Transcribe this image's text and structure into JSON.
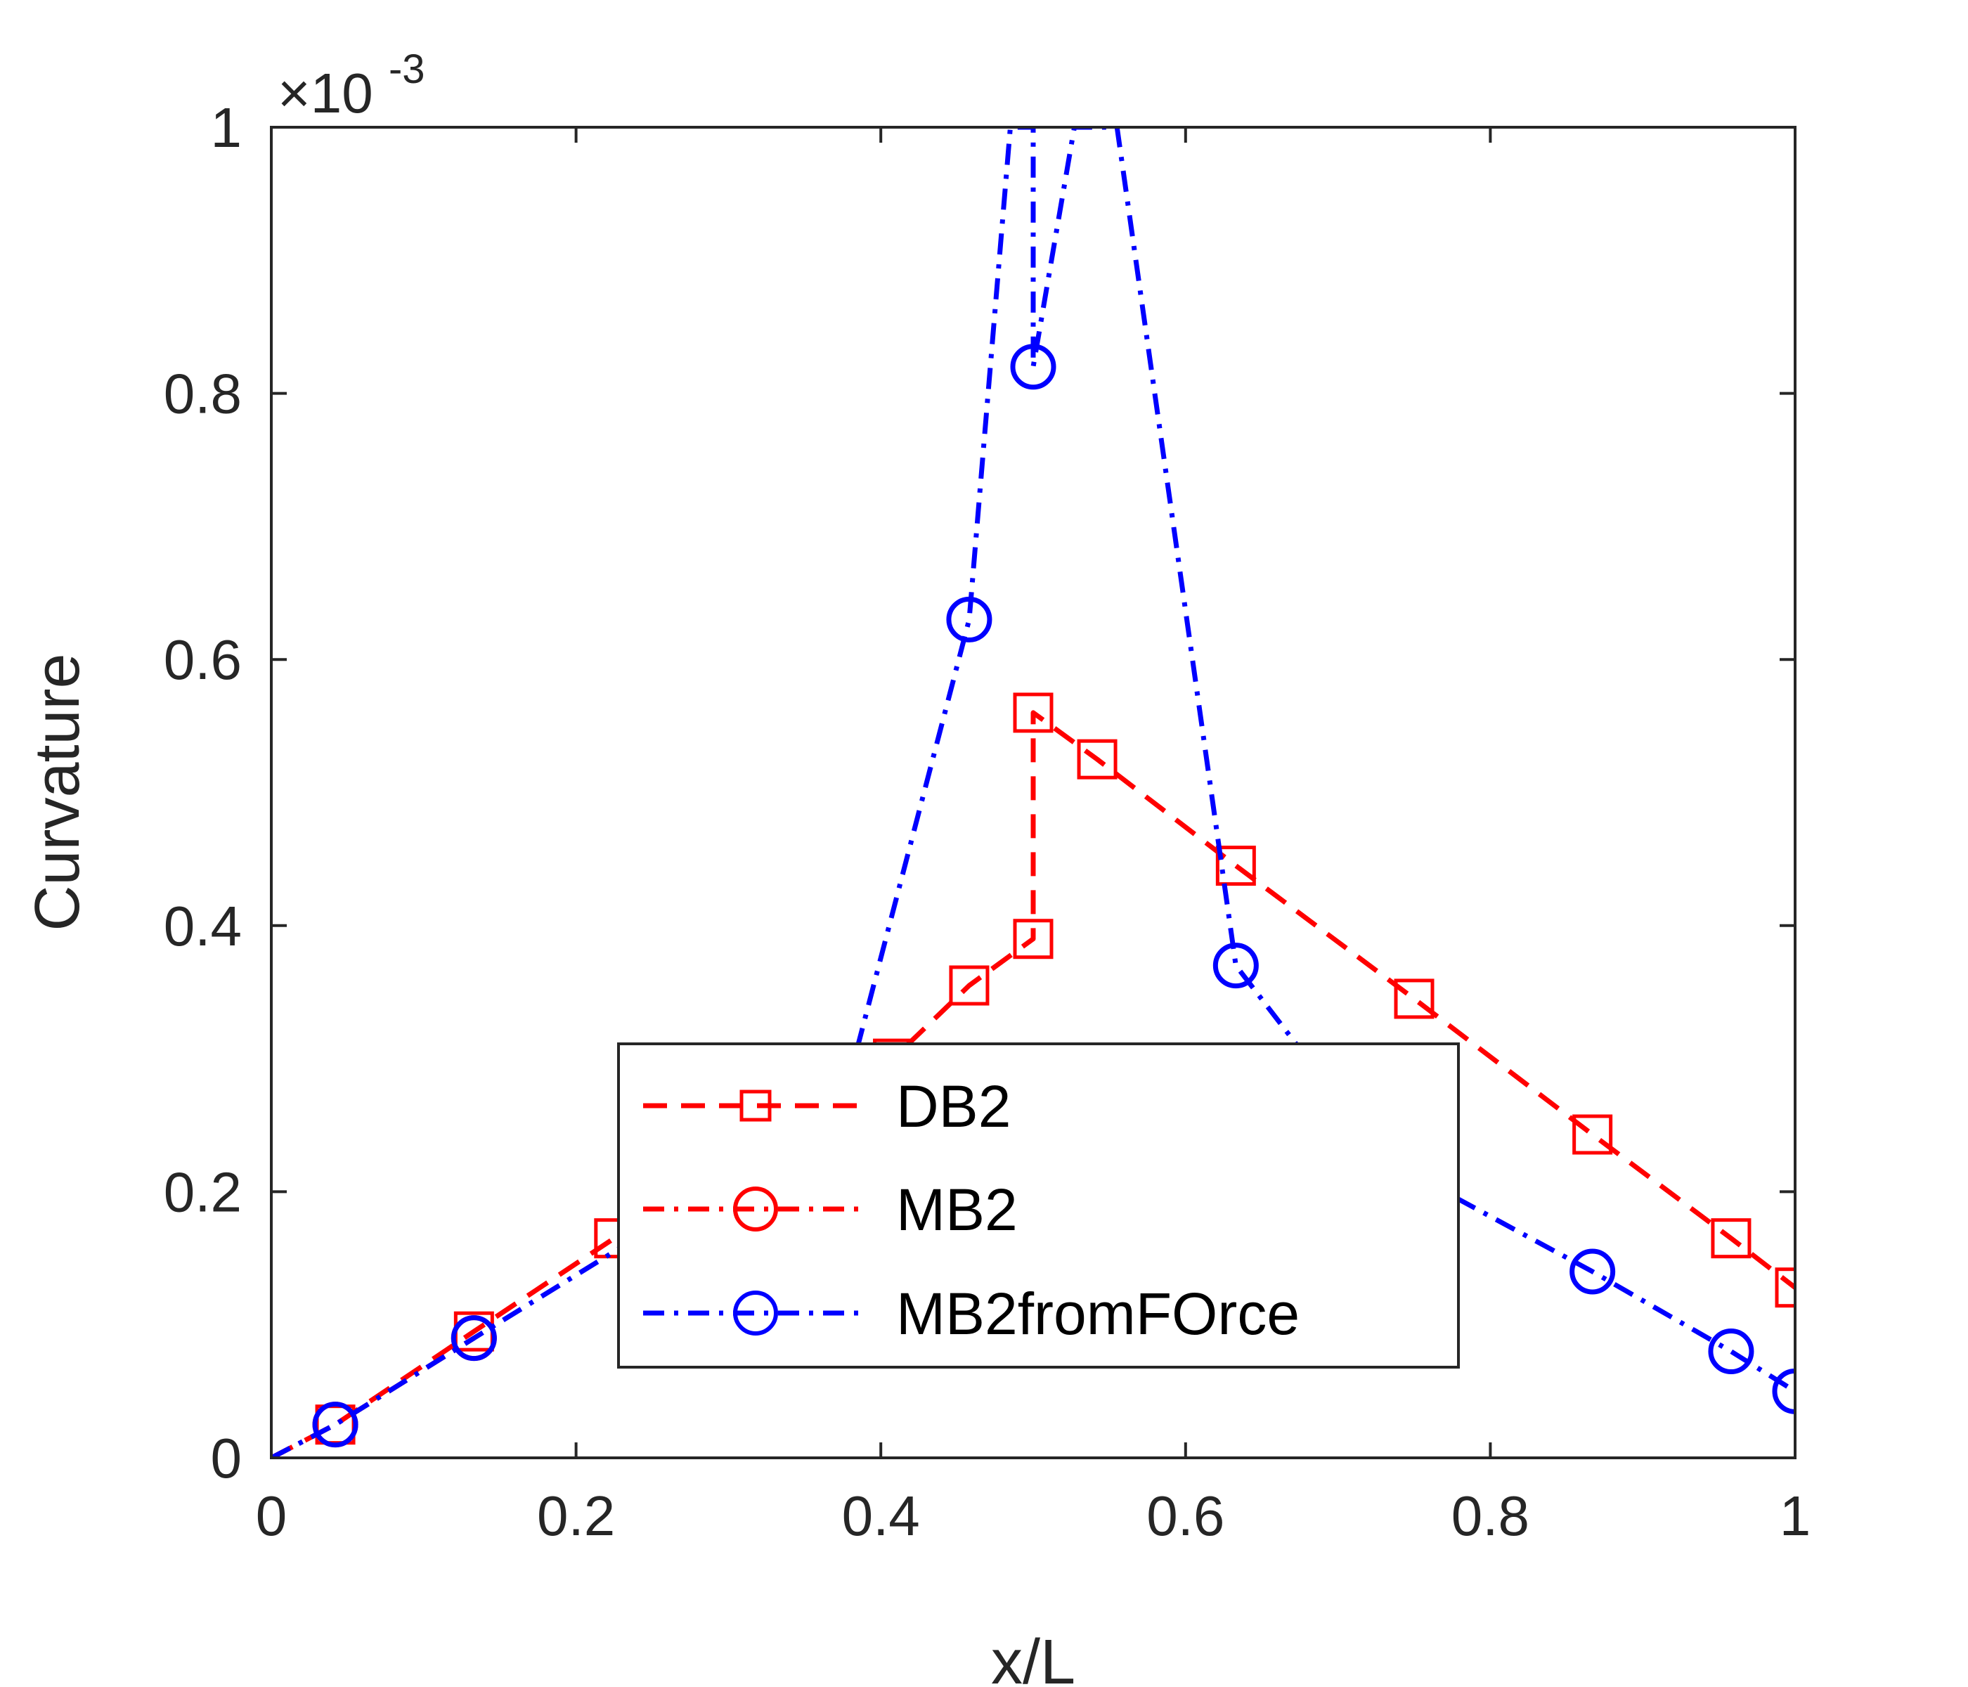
{
  "chart_data": {
    "type": "line",
    "xlabel": "x/L",
    "ylabel": "Curvature",
    "exponent_label": {
      "base": "×10",
      "power": "-3"
    },
    "xlim": [
      0,
      1
    ],
    "ylim": [
      0,
      1
    ],
    "y_scale_factor": 0.001,
    "x_ticks": [
      0,
      0.2,
      0.4,
      0.6,
      0.8,
      1
    ],
    "x_tick_labels": [
      "0",
      "0.2",
      "0.4",
      "0.6",
      "0.8",
      "1"
    ],
    "y_ticks": [
      0,
      0.2,
      0.4,
      0.6,
      0.8,
      1
    ],
    "y_tick_labels": [
      "0",
      "0.2",
      "0.4",
      "0.6",
      "0.8",
      "1"
    ],
    "grid": false,
    "legend_position": "lower-center",
    "series": [
      {
        "name": "DB2",
        "color": "#ff0000",
        "line_style": "dashed",
        "marker": "square",
        "x": [
          0,
          0.042,
          0.133,
          0.225,
          0.316,
          0.408,
          0.458,
          0.5,
          0.5,
          0.542,
          0.633,
          0.75,
          0.867,
          0.958,
          1.0
        ],
        "y": [
          0,
          0.025,
          0.095,
          0.165,
          0.235,
          0.3,
          0.355,
          0.39,
          0.56,
          0.525,
          0.445,
          0.345,
          0.243,
          0.165,
          0.128
        ]
      },
      {
        "name": "MB2",
        "color": "#ff0000",
        "line_style": "dashdot",
        "marker": "circle",
        "x": [
          0,
          0.042,
          0.133
        ],
        "y": [
          0,
          0.025,
          0.09
        ]
      },
      {
        "name": "MB2fromFOrce",
        "color": "#0000ff",
        "line_style": "dashdot",
        "marker": "circle",
        "x": [
          0,
          0.042,
          0.133,
          0.225,
          0.316,
          0.385,
          0.458,
          0.485,
          0.5,
          0.5,
          0.527,
          0.555,
          0.633,
          0.68,
          0.77,
          0.867,
          0.958,
          1.0
        ],
        "y": [
          0,
          0.025,
          0.09,
          0.155,
          0.22,
          0.31,
          0.63,
          1.0,
          1.0,
          0.82,
          1.0,
          1.0,
          0.37,
          0.3,
          0.2,
          0.14,
          0.08,
          0.05
        ],
        "marker_x": [
          0.042,
          0.133,
          0.458,
          0.5,
          0.633,
          0.867,
          0.958,
          1.0
        ],
        "marker_y": [
          0.025,
          0.09,
          0.63,
          0.82,
          0.37,
          0.14,
          0.08,
          0.05
        ]
      }
    ]
  }
}
